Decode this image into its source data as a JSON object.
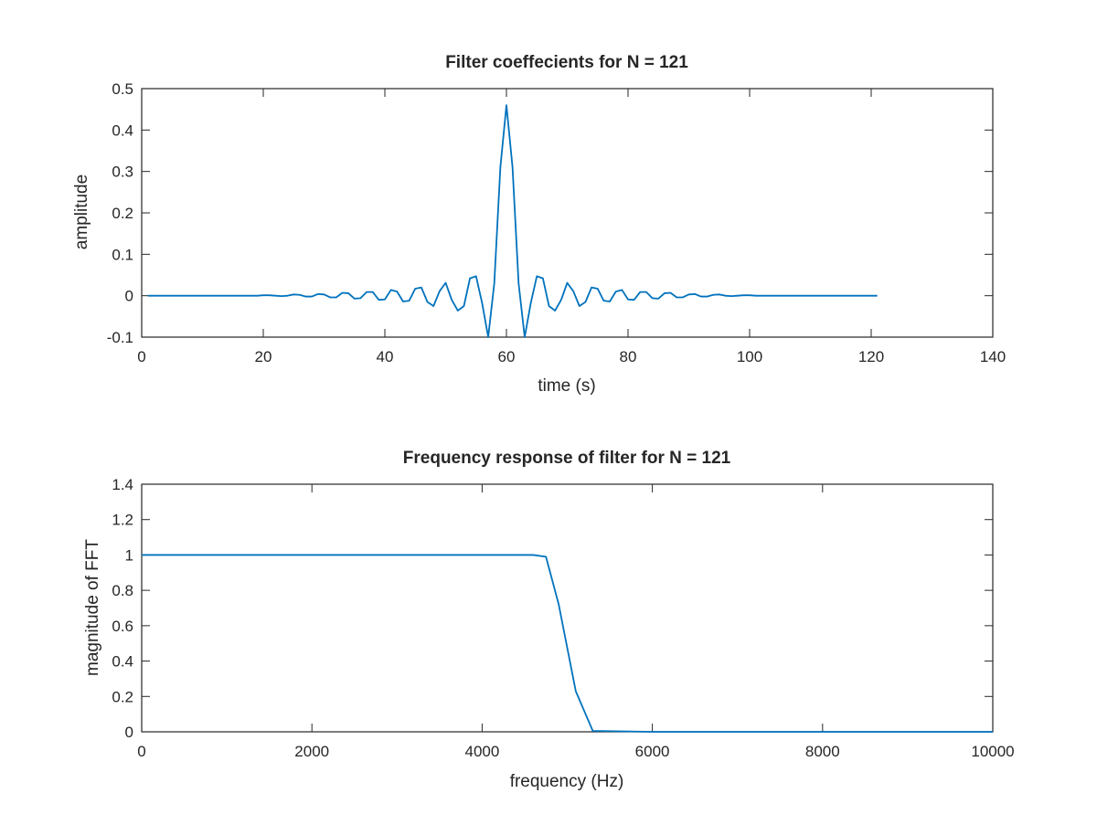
{
  "line_color": "#0072bd",
  "chart_data": [
    {
      "type": "line",
      "title": "Filter coeffecients for N = 121",
      "xlabel": "time (s)",
      "ylabel": "amplitude",
      "xlim": [
        0,
        140
      ],
      "ylim": [
        -0.1,
        0.5
      ],
      "xticks": [
        "0",
        "20",
        "40",
        "60",
        "80",
        "100",
        "120",
        "140"
      ],
      "yticks": [
        "-0.1",
        "0",
        "0.1",
        "0.2",
        "0.3",
        "0.4",
        "0.5"
      ],
      "grid": false,
      "series": [
        {
          "x": [
            1,
            2,
            3,
            4,
            5,
            6,
            7,
            8,
            9,
            10,
            11,
            12,
            13,
            14,
            15,
            16,
            17,
            18,
            19,
            20,
            21,
            22,
            23,
            24,
            25,
            26,
            27,
            28,
            29,
            30,
            31,
            32,
            33,
            34,
            35,
            36,
            37,
            38,
            39,
            40,
            41,
            42,
            43,
            44,
            45,
            46,
            47,
            48,
            49,
            50,
            51,
            52,
            53,
            54,
            55,
            56,
            57,
            58,
            59,
            60,
            61,
            62,
            63,
            64,
            65,
            66,
            67,
            68,
            69,
            70,
            71,
            72,
            73,
            74,
            75,
            76,
            77,
            78,
            79,
            80,
            81,
            82,
            83,
            84,
            85,
            86,
            87,
            88,
            89,
            90,
            91,
            92,
            93,
            94,
            95,
            96,
            97,
            98,
            99,
            100,
            101,
            102,
            103,
            104,
            105,
            106,
            107,
            108,
            109,
            110,
            111,
            112,
            113,
            114,
            115,
            116,
            117,
            118,
            119,
            120,
            121
          ],
          "y": [
            0,
            0,
            0,
            0,
            0,
            0,
            0,
            0,
            0,
            0,
            0,
            0,
            0,
            0,
            0,
            0,
            0,
            0,
            0,
            0.001,
            0.001,
            0,
            -0.001,
            0,
            0.003,
            0.002,
            -0.002,
            -0.002,
            0.004,
            0.003,
            -0.004,
            -0.004,
            0.007,
            0.006,
            -0.007,
            -0.006,
            0.009,
            0.009,
            -0.01,
            -0.009,
            0.014,
            0.01,
            -0.014,
            -0.012,
            0.017,
            0.02,
            -0.015,
            -0.025,
            0.011,
            0.031,
            -0.01,
            -0.036,
            -0.025,
            0.042,
            0.047,
            -0.018,
            -0.1,
            0.03,
            0.31,
            0.46,
            0.31,
            0.03,
            -0.1,
            -0.018,
            0.047,
            0.042,
            -0.025,
            -0.036,
            -0.01,
            0.031,
            0.011,
            -0.025,
            -0.015,
            0.02,
            0.017,
            -0.012,
            -0.014,
            0.01,
            0.014,
            -0.009,
            -0.01,
            0.009,
            0.009,
            -0.006,
            -0.007,
            0.006,
            0.007,
            -0.004,
            -0.004,
            0.003,
            0.004,
            -0.002,
            -0.002,
            0.002,
            0.003,
            0,
            -0.001,
            0,
            0.001,
            0.001,
            0,
            0,
            0,
            0,
            0,
            0,
            0,
            0,
            0,
            0,
            0,
            0,
            0,
            0,
            0,
            0,
            0,
            0,
            0,
            0,
            0
          ]
        }
      ]
    },
    {
      "type": "line",
      "title": "Frequency response of filter for N = 121",
      "xlabel": "frequency (Hz)",
      "ylabel": "magnitude of FFT",
      "xlim": [
        0,
        10000
      ],
      "ylim": [
        0,
        1.4
      ],
      "xticks": [
        "0",
        "2000",
        "4000",
        "6000",
        "8000",
        "10000"
      ],
      "yticks": [
        "0",
        "0.2",
        "0.4",
        "0.6",
        "0.8",
        "1",
        "1.2",
        "1.4"
      ],
      "grid": false,
      "series": [
        {
          "x": [
            0,
            500,
            1000,
            1500,
            2000,
            2500,
            3000,
            3500,
            4000,
            4500,
            4600,
            4750,
            4900,
            5100,
            5300,
            6000,
            7000,
            8000,
            9000,
            10000
          ],
          "y": [
            1.0,
            1.0,
            1.0,
            1.0,
            1.0,
            1.0,
            1.0,
            1.0,
            1.0,
            1.0,
            1.0,
            0.99,
            0.72,
            0.23,
            0.005,
            0,
            0,
            0,
            0,
            0
          ]
        }
      ]
    }
  ]
}
